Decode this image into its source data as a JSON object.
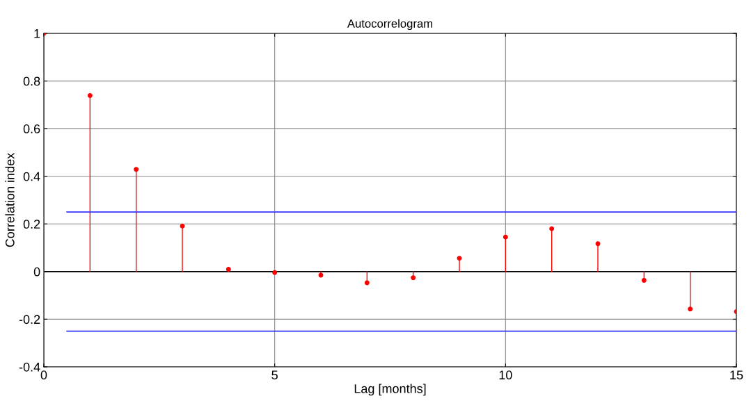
{
  "chart_data": {
    "type": "lollipop",
    "title": "Autocorrelogram",
    "xlabel": "Lag [months]",
    "ylabel": "Correlation index",
    "xlim": [
      0,
      15
    ],
    "xticks": [
      0,
      5,
      10,
      15
    ],
    "ylim": [
      -0.4,
      1
    ],
    "yticks": [
      -0.4,
      -0.2,
      0,
      0.2,
      0.4,
      0.6,
      0.8,
      1
    ],
    "grid": true,
    "series": [
      {
        "marker": "circle",
        "color": "#ff0000",
        "x": [
          0,
          1,
          2,
          3,
          4,
          5,
          6,
          7,
          8,
          9,
          10,
          11,
          12,
          13,
          14,
          15
        ],
        "values": [
          1,
          0.739,
          0.429,
          0.191,
          0.01,
          -0.004,
          -0.015,
          -0.047,
          -0.026,
          0.056,
          0.145,
          0.18,
          0.117,
          -0.037,
          -0.157,
          -0.168
        ]
      },
      {
        "type": "line",
        "color": "#3333ff",
        "x": [
          0.5,
          15
        ],
        "values": [
          0.25,
          0.25
        ]
      },
      {
        "type": "line",
        "color": "#3333ff",
        "x": [
          0.5,
          15
        ],
        "values": [
          -0.25,
          -0.25
        ]
      }
    ]
  }
}
